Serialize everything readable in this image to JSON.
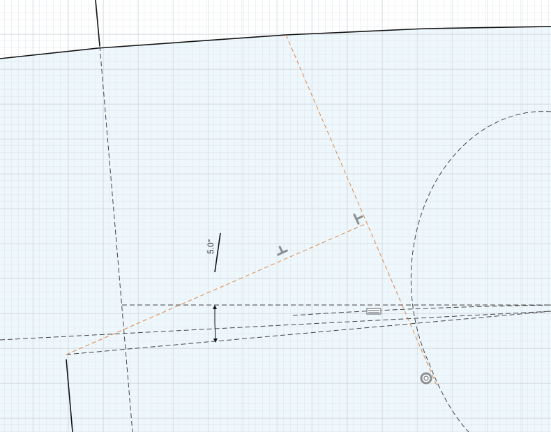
{
  "sketch": {
    "dimension": {
      "angle_label": "5.0°"
    },
    "constraints": [
      {
        "name": "perpendicular-constraint-1",
        "icon": "perpendicular-icon"
      },
      {
        "name": "perpendicular-constraint-2",
        "icon": "perpendicular-icon"
      },
      {
        "name": "parallel-constraint",
        "icon": "parallel-icon"
      },
      {
        "name": "coincident-constraint",
        "icon": "coincident-icon"
      }
    ],
    "colors": {
      "background": "#ffffff",
      "profile_fill": "#eef7fc",
      "grid_minor": "#dfe6ea",
      "grid_major": "#c9d1d6",
      "solid_line": "#111111",
      "construction_line": "#444444",
      "construction_orange": "#d9894a",
      "constraint_glyph": "#8a8f94"
    }
  }
}
